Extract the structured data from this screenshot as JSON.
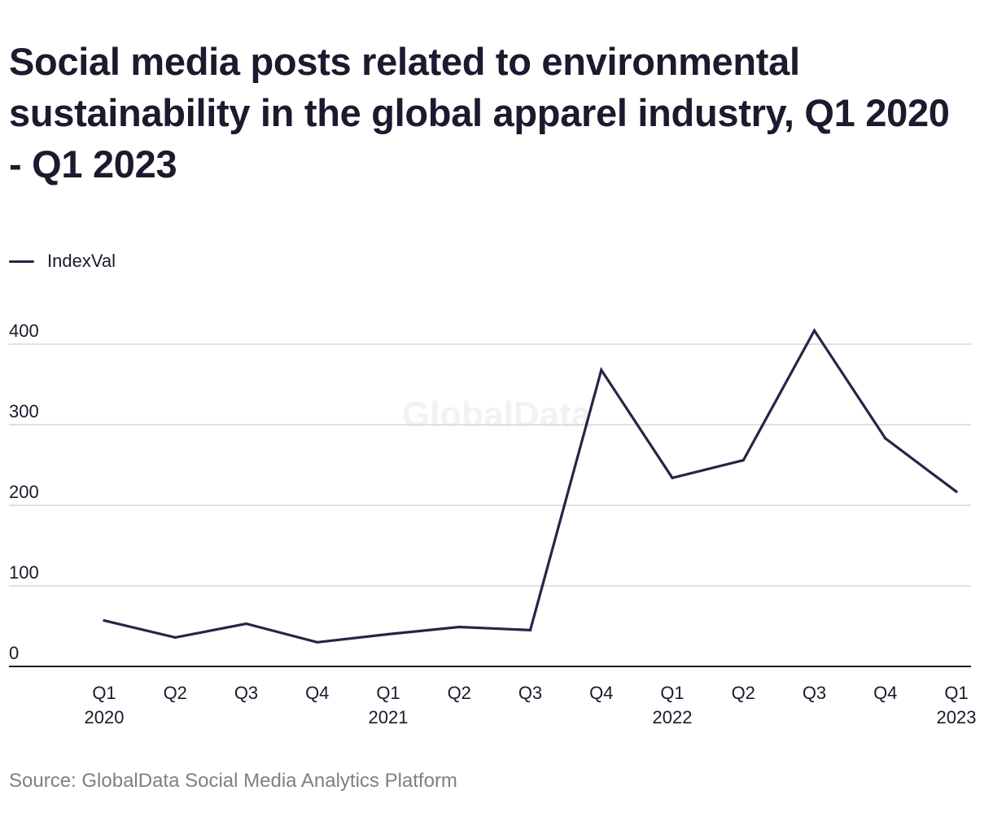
{
  "chart_data": {
    "type": "line",
    "title": "Social media posts related to environmental sustainability in the global apparel industry, Q1 2020 - Q1 2023",
    "categories": [
      {
        "q": "Q1",
        "year": "2020"
      },
      {
        "q": "Q2",
        "year": ""
      },
      {
        "q": "Q3",
        "year": ""
      },
      {
        "q": "Q4",
        "year": ""
      },
      {
        "q": "Q1",
        "year": "2021"
      },
      {
        "q": "Q2",
        "year": ""
      },
      {
        "q": "Q3",
        "year": ""
      },
      {
        "q": "Q4",
        "year": ""
      },
      {
        "q": "Q1",
        "year": "2022"
      },
      {
        "q": "Q2",
        "year": ""
      },
      {
        "q": "Q3",
        "year": ""
      },
      {
        "q": "Q4",
        "year": ""
      },
      {
        "q": "Q1",
        "year": "2023"
      }
    ],
    "series": [
      {
        "name": "IndexVal",
        "color": "#2e2147",
        "values": [
          57,
          36,
          53,
          30,
          40,
          49,
          45,
          368,
          234,
          256,
          417,
          283,
          217
        ]
      }
    ],
    "ylim": [
      0,
      420
    ],
    "yticks": [
      0,
      100,
      200,
      300,
      400
    ],
    "xlabel": "",
    "ylabel": "",
    "grid": true,
    "legend_position": "top-left",
    "watermark": "GlobalData",
    "source": "Source: GlobalData Social Media Analytics Platform"
  }
}
